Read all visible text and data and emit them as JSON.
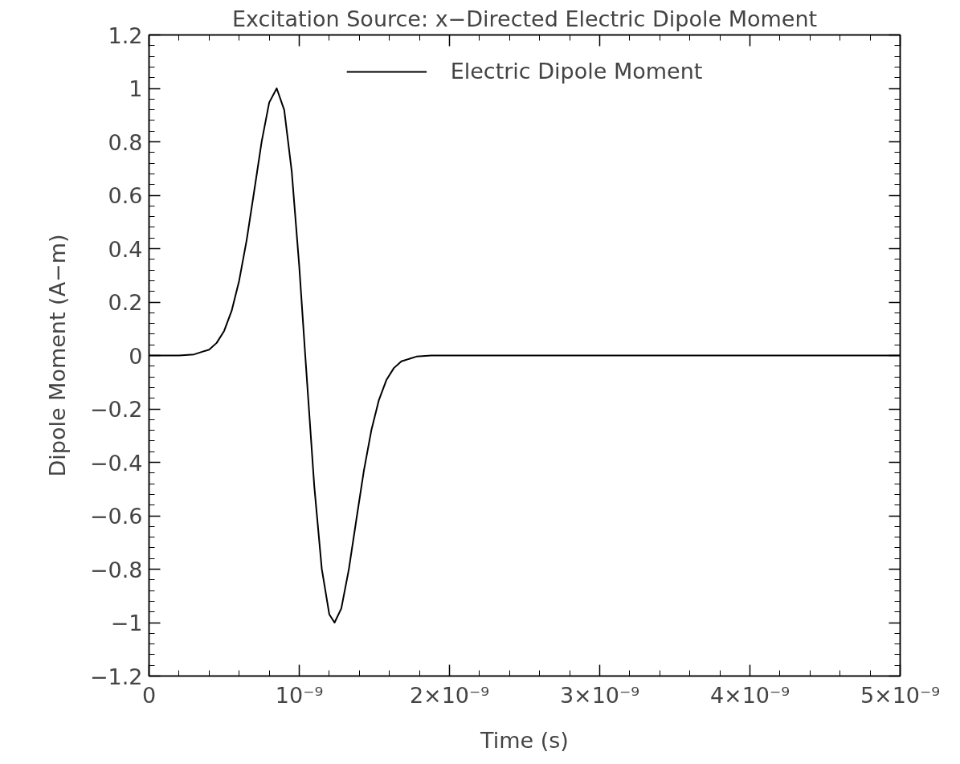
{
  "chart_data": {
    "type": "line",
    "title": "Excitation Source: x−Directed Electric Dipole Moment",
    "xlabel": "Time (s)",
    "ylabel": "Dipole Moment (A−m)",
    "x": [
      0,
      2e-10,
      3e-10,
      4e-10,
      4.5e-10,
      5e-10,
      5.5e-10,
      6e-10,
      6.5e-10,
      7e-10,
      7.5e-10,
      8e-10,
      8.5e-10,
      9e-10,
      9.5e-10,
      1e-09,
      1.04e-09,
      1.1e-09,
      1.15e-09,
      1.2e-09,
      1.235e-09,
      1.28e-09,
      1.33e-09,
      1.38e-09,
      1.43e-09,
      1.48e-09,
      1.53e-09,
      1.58e-09,
      1.63e-09,
      1.68e-09,
      1.78e-09,
      1.88e-09,
      5e-09
    ],
    "series": [
      {
        "name": "Electric Dipole Moment",
        "color": "#000000",
        "values": [
          0,
          0.0,
          0.004,
          0.022,
          0.047,
          0.092,
          0.167,
          0.28,
          0.432,
          0.615,
          0.801,
          0.947,
          1.0,
          0.919,
          0.689,
          0.334,
          0,
          -0.489,
          -0.799,
          -0.969,
          -1.0,
          -0.947,
          -0.801,
          -0.615,
          -0.432,
          -0.28,
          -0.167,
          -0.092,
          -0.047,
          -0.022,
          -0.004,
          0.0,
          0
        ]
      }
    ],
    "xlim": [
      0,
      5e-09
    ],
    "ylim": [
      -1.2,
      1.2
    ],
    "xticks": [
      0,
      {
        "value": 1e-09,
        "label": "10⁻⁹"
      },
      {
        "value": 2e-09,
        "label": "2×10⁻⁹"
      },
      {
        "value": 3e-09,
        "label": "3×10⁻⁹"
      },
      {
        "value": 4e-09,
        "label": "4×10⁻⁹"
      },
      {
        "value": 5e-09,
        "label": "5×10⁻⁹"
      }
    ],
    "yticks": [
      -1.2,
      -1,
      -0.8,
      -0.6,
      -0.4,
      -0.2,
      0,
      0.2,
      0.4,
      0.6,
      0.8,
      1,
      1.2
    ],
    "grid": false,
    "legend": "top",
    "line_style": "solid",
    "marker": "none"
  }
}
